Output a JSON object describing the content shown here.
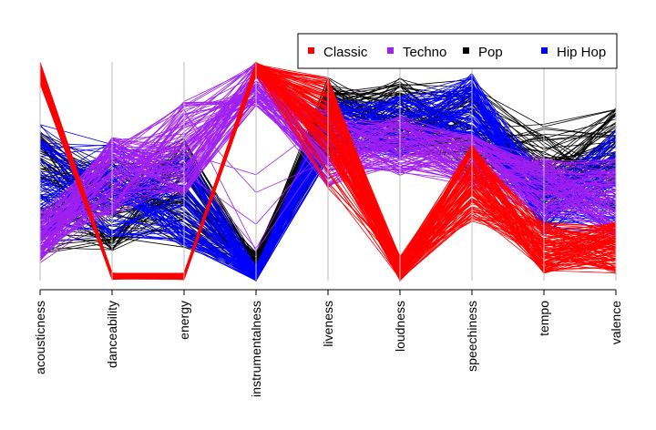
{
  "chart_data": {
    "type": "parallel_coordinates",
    "title": "",
    "axes": [
      "acousticness",
      "danceability",
      "energy",
      "instrumentalness",
      "liveness",
      "loudness",
      "speechiness",
      "tempo",
      "valence"
    ],
    "grid": false,
    "legend_position": "top-right",
    "legend": [
      {
        "label": "Classic",
        "color": "#ff0000"
      },
      {
        "label": "Techno",
        "color": "#a020f0"
      },
      {
        "label": "Pop",
        "color": "#000000"
      },
      {
        "label": "Hip Hop",
        "color": "#0000ff"
      }
    ],
    "series": [
      {
        "name": "Classic",
        "color": "#ff0000",
        "line_count": 120,
        "typical_profile": [
          0.95,
          0.02,
          0.02,
          0.97,
          0.75,
          0.05,
          0.45,
          0.15,
          0.15
        ]
      },
      {
        "name": "Techno",
        "color": "#a020f0",
        "line_count": 100,
        "typical_profile": [
          0.2,
          0.48,
          0.6,
          0.9,
          0.6,
          0.62,
          0.55,
          0.42,
          0.38
        ]
      },
      {
        "name": "Pop",
        "color": "#000000",
        "line_count": 80,
        "typical_profile": [
          0.4,
          0.35,
          0.4,
          0.05,
          0.75,
          0.75,
          0.7,
          0.5,
          0.55
        ]
      },
      {
        "name": "Hip Hop",
        "color": "#0000ff",
        "line_count": 80,
        "typical_profile": [
          0.45,
          0.42,
          0.38,
          0.02,
          0.7,
          0.7,
          0.8,
          0.35,
          0.45
        ]
      }
    ]
  }
}
